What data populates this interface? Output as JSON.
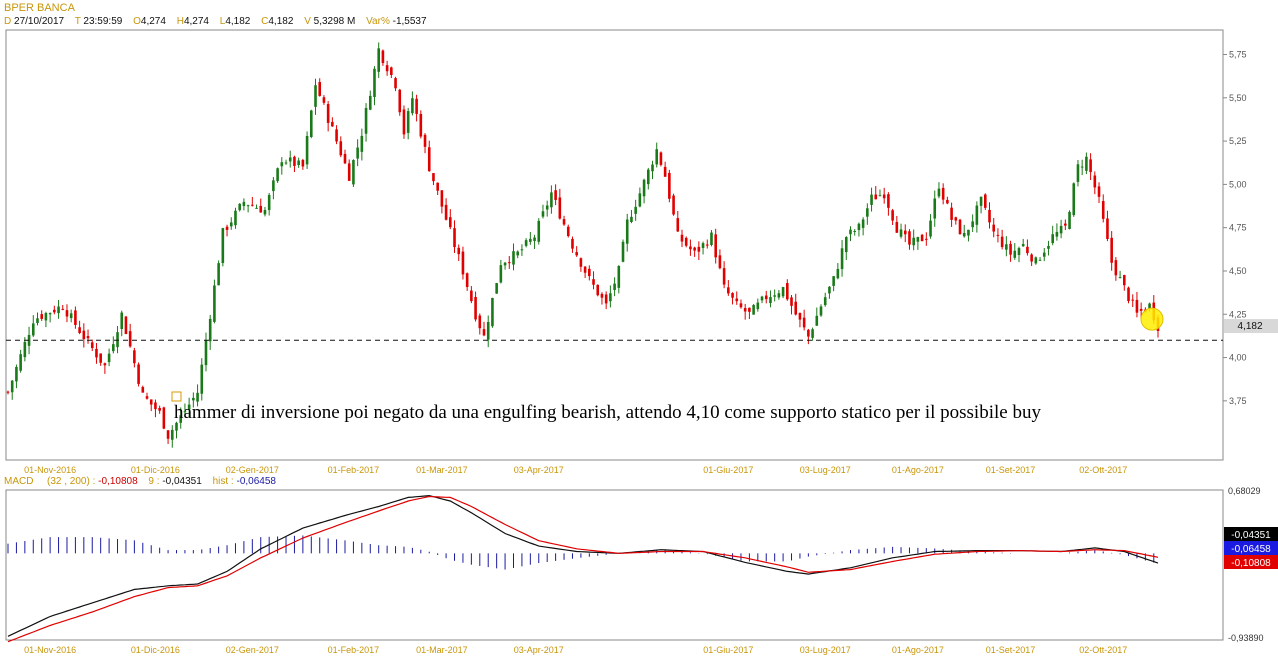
{
  "header": {
    "title": "BPER BANCA",
    "date_key": "D",
    "date": "27/10/2017",
    "time_key": "T",
    "time": "23:59:59",
    "open_key": "O",
    "open": "4,274",
    "high_key": "H",
    "high": "4,274",
    "low_key": "L",
    "low": "4,182",
    "close_key": "C",
    "close": "4,182",
    "volume_key": "V",
    "volume": "5,3298 M",
    "var_key": "Var%",
    "var": "-1,5537"
  },
  "macd_header": {
    "label": "MACD",
    "params": "(32 , 200) :",
    "macd_value": "-0,10808",
    "signal_label": "9 :",
    "signal_value": "-0,04351",
    "hist_label": "hist :",
    "hist_value": "-0,06458"
  },
  "annotation": {
    "text": "hammer di inversione poi negato da una engulfing bearish, attendo 4,10 come supporto statico per il possibile buy"
  },
  "colors": {
    "up": "#1a7a1a",
    "down": "#e00000",
    "macd_line": "#111111",
    "signal_line": "#e00000",
    "histogram": "#1a1aa0",
    "label_gold": "#c8960a",
    "last_price_bg": "#d8d8d8",
    "highlight": "#ffee00"
  },
  "chart_data": [
    {
      "type": "candlestick",
      "title": "BPER BANCA",
      "x_tick_labels": [
        "01-Nov-2016",
        "01-Dic-2016",
        "02-Gen-2017",
        "01-Feb-2017",
        "01-Mar-2017",
        "03-Apr-2017",
        "01-Giu-2017",
        "03-Lug-2017",
        "01-Ago-2017",
        "01-Set-2017",
        "02-Ott-2017"
      ],
      "y_ticks": [
        "3,75",
        "4,00",
        "4,25",
        "4,50",
        "4,75",
        "5,00",
        "5,25",
        "5,50",
        "5,75"
      ],
      "ylim": [
        3.42,
        5.88
      ],
      "last_price": 4.182,
      "last_price_label": "4,182",
      "support_level": 4.1,
      "grid": false,
      "close_path": [
        [
          0,
          3.8
        ],
        [
          6,
          4.22
        ],
        [
          13,
          4.3
        ],
        [
          18,
          4.12
        ],
        [
          23,
          3.95
        ],
        [
          27,
          4.25
        ],
        [
          32,
          3.78
        ],
        [
          36,
          3.68
        ],
        [
          38,
          3.55
        ],
        [
          45,
          3.8
        ],
        [
          48,
          4.25
        ],
        [
          51,
          4.72
        ],
        [
          56,
          4.9
        ],
        [
          61,
          4.85
        ],
        [
          65,
          5.15
        ],
        [
          70,
          5.1
        ],
        [
          73,
          5.58
        ],
        [
          78,
          5.25
        ],
        [
          81,
          5.05
        ],
        [
          84,
          5.3
        ],
        [
          88,
          5.78
        ],
        [
          92,
          5.58
        ],
        [
          94,
          5.3
        ],
        [
          96,
          5.5
        ],
        [
          100,
          5.1
        ],
        [
          104,
          4.8
        ],
        [
          108,
          4.5
        ],
        [
          111,
          4.25
        ],
        [
          113,
          4.12
        ],
        [
          117,
          4.55
        ],
        [
          121,
          4.6
        ],
        [
          125,
          4.7
        ],
        [
          129,
          4.95
        ],
        [
          134,
          4.65
        ],
        [
          138,
          4.45
        ],
        [
          142,
          4.3
        ],
        [
          145,
          4.5
        ],
        [
          147,
          4.78
        ],
        [
          150,
          4.95
        ],
        [
          154,
          5.2
        ],
        [
          156,
          5.05
        ],
        [
          159,
          4.7
        ],
        [
          163,
          4.6
        ],
        [
          167,
          4.7
        ],
        [
          170,
          4.4
        ],
        [
          173,
          4.3
        ],
        [
          176,
          4.25
        ],
        [
          180,
          4.35
        ],
        [
          184,
          4.4
        ],
        [
          187,
          4.25
        ],
        [
          190,
          4.12
        ],
        [
          193,
          4.3
        ],
        [
          196,
          4.45
        ],
        [
          199,
          4.7
        ],
        [
          202,
          4.75
        ],
        [
          205,
          4.92
        ],
        [
          208,
          4.95
        ],
        [
          211,
          4.75
        ],
        [
          214,
          4.65
        ],
        [
          218,
          4.7
        ],
        [
          221,
          5.0
        ],
        [
          224,
          4.8
        ],
        [
          227,
          4.7
        ],
        [
          231,
          4.9
        ],
        [
          234,
          4.72
        ],
        [
          238,
          4.6
        ],
        [
          241,
          4.65
        ],
        [
          244,
          4.55
        ],
        [
          248,
          4.7
        ],
        [
          251,
          4.75
        ],
        [
          254,
          5.1
        ],
        [
          256,
          5.15
        ],
        [
          259,
          4.9
        ],
        [
          262,
          4.55
        ],
        [
          265,
          4.4
        ],
        [
          268,
          4.25
        ],
        [
          271,
          4.3
        ],
        [
          273,
          4.182
        ]
      ],
      "n_bars": 274
    },
    {
      "type": "line",
      "title": "MACD (32 , 200)",
      "ylim": [
        -0.9389,
        0.68029
      ],
      "y_ticks": [
        "0,68029",
        "-0,93890"
      ],
      "value_boxes": [
        "-0,04351",
        "-0,06458",
        "-0,10808"
      ],
      "x_tick_labels": [
        "01-Nov-2016",
        "01-Dic-2016",
        "02-Gen-2017",
        "01-Feb-2017",
        "01-Mar-2017",
        "03-Apr-2017",
        "01-Giu-2017",
        "03-Lug-2017",
        "01-Ago-2017",
        "01-Set-2017",
        "02-Ott-2017"
      ],
      "series": [
        {
          "name": "MACD",
          "points": [
            [
              0,
              -0.92
            ],
            [
              10,
              -0.7
            ],
            [
              20,
              -0.55
            ],
            [
              30,
              -0.4
            ],
            [
              38,
              -0.36
            ],
            [
              45,
              -0.34
            ],
            [
              52,
              -0.2
            ],
            [
              60,
              0.05
            ],
            [
              70,
              0.28
            ],
            [
              80,
              0.42
            ],
            [
              88,
              0.52
            ],
            [
              95,
              0.62
            ],
            [
              100,
              0.64
            ],
            [
              105,
              0.58
            ],
            [
              110,
              0.45
            ],
            [
              118,
              0.22
            ],
            [
              126,
              0.08
            ],
            [
              135,
              0.02
            ],
            [
              145,
              0.0
            ],
            [
              155,
              0.04
            ],
            [
              165,
              0.02
            ],
            [
              175,
              -0.1
            ],
            [
              185,
              -0.2
            ],
            [
              190,
              -0.23
            ],
            [
              200,
              -0.16
            ],
            [
              210,
              -0.05
            ],
            [
              220,
              0.02
            ],
            [
              230,
              0.03
            ],
            [
              240,
              0.03
            ],
            [
              250,
              0.02
            ],
            [
              258,
              0.06
            ],
            [
              265,
              0.02
            ],
            [
              273,
              -0.108
            ]
          ]
        },
        {
          "name": "9",
          "points": [
            [
              0,
              -0.98
            ],
            [
              10,
              -0.8
            ],
            [
              20,
              -0.65
            ],
            [
              30,
              -0.48
            ],
            [
              38,
              -0.38
            ],
            [
              45,
              -0.36
            ],
            [
              52,
              -0.25
            ],
            [
              60,
              -0.05
            ],
            [
              70,
              0.17
            ],
            [
              80,
              0.34
            ],
            [
              88,
              0.47
            ],
            [
              95,
              0.58
            ],
            [
              100,
              0.63
            ],
            [
              105,
              0.62
            ],
            [
              110,
              0.52
            ],
            [
              118,
              0.32
            ],
            [
              126,
              0.14
            ],
            [
              135,
              0.05
            ],
            [
              145,
              0.0
            ],
            [
              155,
              0.02
            ],
            [
              165,
              0.02
            ],
            [
              175,
              -0.05
            ],
            [
              185,
              -0.15
            ],
            [
              190,
              -0.21
            ],
            [
              200,
              -0.18
            ],
            [
              210,
              -0.09
            ],
            [
              220,
              -0.01
            ],
            [
              230,
              0.02
            ],
            [
              240,
              0.03
            ],
            [
              250,
              0.02
            ],
            [
              258,
              0.04
            ],
            [
              265,
              0.03
            ],
            [
              273,
              -0.0435
            ]
          ]
        }
      ],
      "histogram_note": "hist"
    }
  ]
}
